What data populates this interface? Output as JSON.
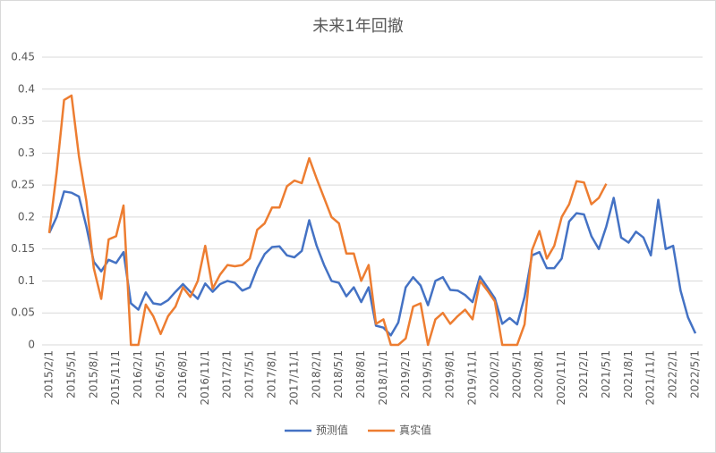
{
  "chart_data": {
    "type": "line",
    "title": "未来1年回撤",
    "categories": [
      "2015/2/1",
      null,
      null,
      "2015/5/1",
      null,
      null,
      "2015/8/1",
      null,
      null,
      "2015/11/1",
      null,
      null,
      "2016/2/1",
      null,
      null,
      "2016/5/1",
      null,
      null,
      "2016/8/1",
      null,
      null,
      "2016/11/1",
      null,
      null,
      "2017/2/1",
      null,
      null,
      "2017/5/1",
      null,
      null,
      "2017/8/1",
      null,
      null,
      "2017/11/1",
      null,
      null,
      "2018/2/1",
      null,
      null,
      "2018/5/1",
      null,
      null,
      "2018/8/1",
      null,
      null,
      "2018/11/1",
      null,
      null,
      "2019/2/1",
      null,
      null,
      "2019/5/1",
      null,
      null,
      "2019/8/1",
      null,
      null,
      "2019/11/1",
      null,
      null,
      "2020/2/1",
      null,
      null,
      "2020/5/1",
      null,
      null,
      "2020/8/1",
      null,
      null,
      "2020/11/1",
      null,
      null,
      "2021/2/1",
      null,
      null,
      "2021/5/1",
      null,
      null,
      "2021/8/1",
      null,
      null,
      "2021/11/1",
      null,
      null,
      "2022/2/1",
      null,
      null,
      "2022/5/1"
    ],
    "series": [
      {
        "name": "预测值",
        "color": "#4472c4",
        "values": [
          0.175,
          0.2,
          0.24,
          0.238,
          0.232,
          0.185,
          0.13,
          0.115,
          0.133,
          0.128,
          0.145,
          0.065,
          0.055,
          0.082,
          0.065,
          0.063,
          0.07,
          0.083,
          0.095,
          0.083,
          0.072,
          0.096,
          0.083,
          0.095,
          0.1,
          0.097,
          0.085,
          0.09,
          0.12,
          0.142,
          0.153,
          0.154,
          0.14,
          0.137,
          0.147,
          0.195,
          0.155,
          0.125,
          0.1,
          0.097,
          0.076,
          0.09,
          0.067,
          0.09,
          0.03,
          0.027,
          0.015,
          0.035,
          0.09,
          0.106,
          0.093,
          0.062,
          0.1,
          0.106,
          0.086,
          0.085,
          0.078,
          0.067,
          0.107,
          0.09,
          0.073,
          0.033,
          0.042,
          0.032,
          0.075,
          0.14,
          0.145,
          0.12,
          0.12,
          0.135,
          0.193,
          0.206,
          0.204,
          0.17,
          0.15,
          0.185,
          0.23,
          0.168,
          0.16,
          0.177,
          0.168,
          0.14,
          0.227,
          0.15,
          0.155,
          0.085,
          0.043,
          0.018
        ]
      },
      {
        "name": "真实值",
        "color": "#ed7d31",
        "values": [
          0.175,
          0.27,
          0.383,
          0.39,
          0.295,
          0.225,
          0.12,
          0.072,
          0.165,
          0.17,
          0.218,
          0,
          0,
          0.063,
          0.045,
          0.017,
          0.045,
          0.06,
          0.09,
          0.075,
          0.1,
          0.155,
          0.088,
          0.11,
          0.125,
          0.123,
          0.125,
          0.135,
          0.18,
          0.19,
          0.215,
          0.215,
          0.248,
          0.257,
          0.253,
          0.292,
          0.26,
          0.23,
          0.2,
          0.19,
          0.143,
          0.143,
          0.1,
          0.125,
          0.033,
          0.04,
          0,
          0,
          0.01,
          0.06,
          0.065,
          0,
          0.04,
          0.05,
          0.033,
          0.045,
          0.055,
          0.04,
          0.1,
          0.085,
          0.068,
          0,
          0,
          0,
          0.032,
          0.148,
          0.178,
          0.135,
          0.155,
          0.2,
          0.22,
          0.256,
          0.254,
          0.22,
          0.23,
          0.252,
          null,
          null,
          null,
          null,
          null,
          null,
          null,
          null,
          null,
          null,
          null,
          null
        ]
      }
    ],
    "ylim": [
      0,
      0.45
    ],
    "yticks": [
      0,
      0.05,
      0.1,
      0.15,
      0.2,
      0.25,
      0.3,
      0.35,
      0.4,
      0.45
    ],
    "grid": true,
    "legend": "bottom"
  }
}
